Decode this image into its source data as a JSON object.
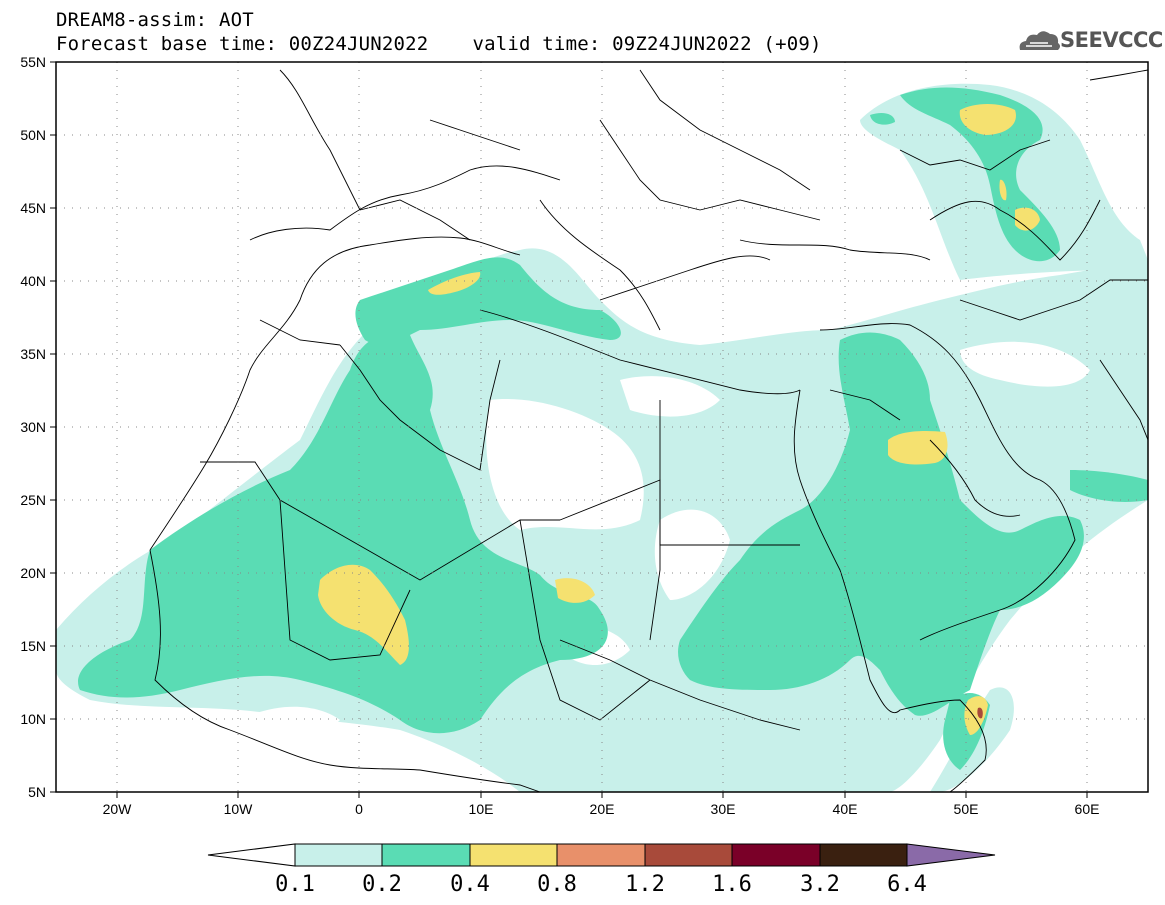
{
  "header": {
    "model_title": "DREAM8-assim: AOT",
    "base_time": "Forecast base time: 00Z24JUN2022",
    "valid_time": "valid time: 09Z24JUN2022 (+09)"
  },
  "logo": {
    "text": "SEEVCCC",
    "icon": "cloud-icon"
  },
  "map": {
    "lon_range": [
      -25,
      65
    ],
    "lat_range": [
      5,
      55
    ],
    "lat_labels": [
      "55N",
      "50N",
      "45N",
      "40N",
      "35N",
      "30N",
      "25N",
      "20N",
      "15N",
      "10N",
      "5N"
    ],
    "lon_labels": [
      "20W",
      "10W",
      "0",
      "10E",
      "20E",
      "30E",
      "40E",
      "50E",
      "60E"
    ]
  },
  "colorbar": {
    "labels": [
      "0.1",
      "0.2",
      "0.4",
      "0.8",
      "1.2",
      "1.6",
      "3.2",
      "6.4"
    ],
    "colors": [
      "#ffffff",
      "#c8f0ea",
      "#5adcb4",
      "#f5e170",
      "#e8906a",
      "#a84a3a",
      "#7a0028",
      "#3a2010",
      "#8a6aa8"
    ]
  }
}
